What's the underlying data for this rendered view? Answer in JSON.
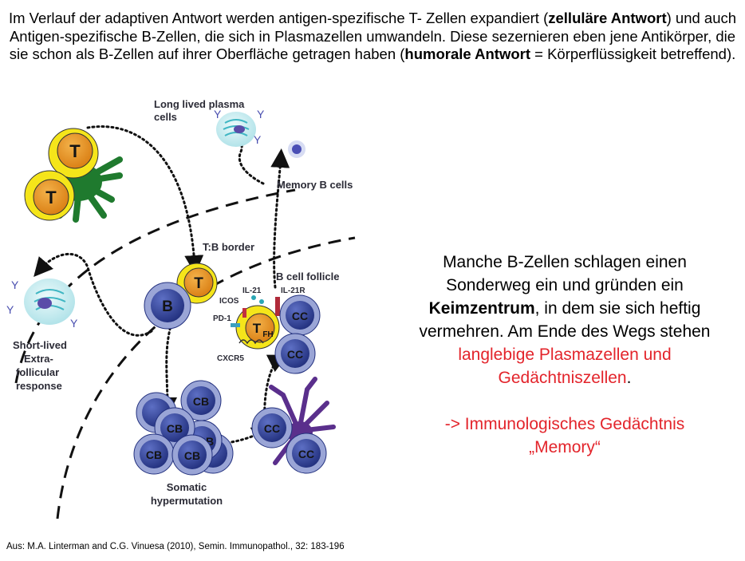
{
  "intro": {
    "part1": "Im Verlauf der adaptiven Antwort werden antigen-spezifische T- Zellen expandiert (",
    "bold1": "zelluläre Antwort",
    "part2": ") und auch Antigen-spezifische B-Zellen, die sich in Plasmazellen umwandeln. Diese sezernieren eben jene Antikörper, die sie schon als B-Zellen auf ihrer Oberfläche getragen haben (",
    "bold2": "humorale Antwort",
    "part3": " = Körperflüssigkeit betreffend)."
  },
  "figure": {
    "labels": {
      "long_lived_1": "Long lived plasma",
      "long_lived_2": "cells",
      "memory_b": "Memory B cells",
      "tb_border": "T:B border",
      "b_follicle": "B cell follicle",
      "il21": "IL-21",
      "il21r": "IL-21R",
      "icos": "ICOS",
      "pd1": "PD-1",
      "cxcr5": "CXCR5",
      "short_1": "Short-lived",
      "short_2": "Extra-",
      "short_3": "follicular",
      "short_4": "response",
      "somatic_1": "Somatic",
      "somatic_2": "hypermutation"
    },
    "cells": {
      "t": "T",
      "b": "B",
      "tfh": "T",
      "tfh_sub": "FH",
      "cc": "CC",
      "cb": "CB"
    }
  },
  "side": {
    "line1": "Manche B-Zellen schlagen einen",
    "line2": "Sonderweg ein und gründen ein",
    "bold": "Keimzentrum",
    "line3_rest": ", in dem sie sich heftig",
    "line4": "vermehren. Am Ende des Wegs stehen",
    "red1": "langlebige Plasmazellen und",
    "red2": "Gedächtniszellen",
    "dot": ".",
    "red3": "-> Immunologisches Gedächtnis",
    "red4": "„Memory“"
  },
  "source": "Aus: M.A. Linterman and C.G. Vinuesa (2010), Semin. Immunopathol., 32: 183-196",
  "colors": {
    "t_cell_outer": "#f5e51a",
    "t_cell_inner": "#e8901e",
    "b_cell": "#3a4aa0",
    "b_cell_ring": "#9aa5d6",
    "dendritic_green": "#1f7a2e",
    "fdc_purple": "#5a2f8c",
    "plasma_cyan": "#bde8ec",
    "red_text": "#e3242b"
  }
}
